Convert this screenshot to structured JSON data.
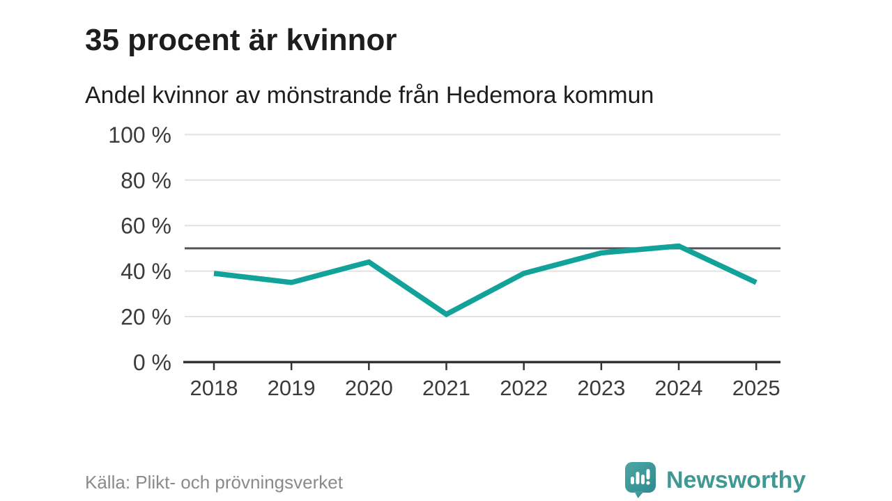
{
  "header": {
    "title": "35 procent är kvinnor",
    "subtitle": "Andel kvinnor av mönstrande från Hedemora kommun"
  },
  "chart_data": {
    "type": "line",
    "title": "35 procent är kvinnor",
    "subtitle": "Andel kvinnor av mönstrande från Hedemora kommun",
    "categories": [
      "2018",
      "2019",
      "2020",
      "2021",
      "2022",
      "2023",
      "2024",
      "2025"
    ],
    "series": [
      {
        "name": "Andel kvinnor av mönstrande",
        "values": [
          39,
          35,
          44,
          21,
          39,
          48,
          51,
          35
        ]
      }
    ],
    "unit": "%",
    "ylim": [
      0,
      100
    ],
    "yticks": [
      0,
      20,
      40,
      60,
      80,
      100
    ],
    "ytick_labels": [
      "0 %",
      "20 %",
      "40 %",
      "60 %",
      "80 %",
      "100 %"
    ],
    "reference_line": 50,
    "grid": "horizontal",
    "legend": "none"
  },
  "footer": {
    "source": "Källa: Plikt- och prövningsverket",
    "brand": "Newsworthy"
  },
  "colors": {
    "line": "#11a29a",
    "reference": "#54555a",
    "grid": "#e1e1e1",
    "axis": "#333333",
    "tick_label": "#3b3b3b",
    "brand": "#3f9894"
  }
}
